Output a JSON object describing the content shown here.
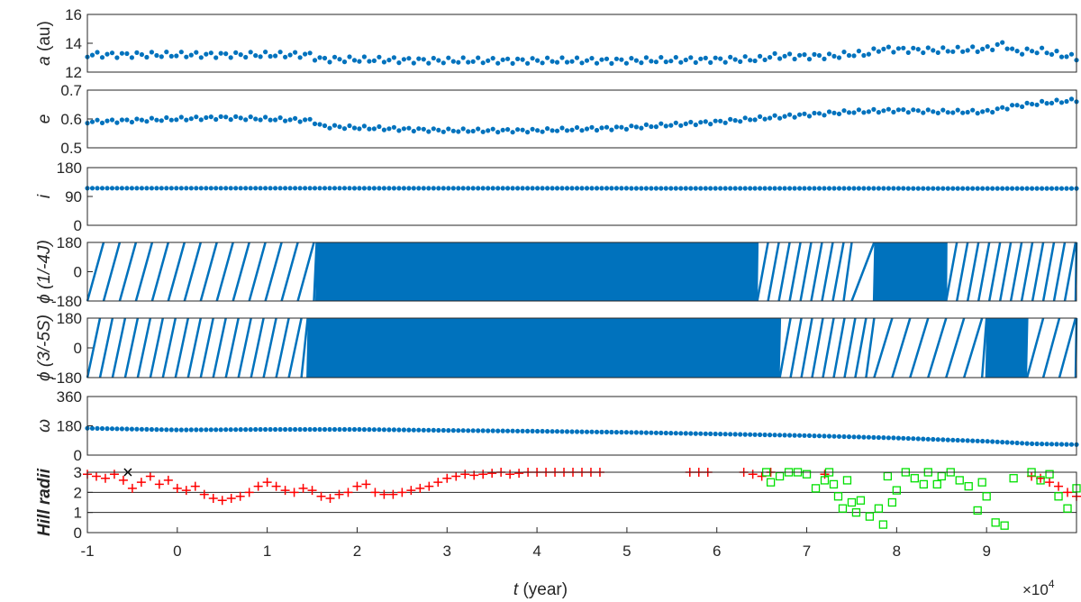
{
  "chart_data": {
    "type": "scatter",
    "title": "",
    "shared_x": {
      "label_var": "t",
      "label_unit": " (year)",
      "lim": [
        -1,
        10
      ],
      "ticks": [
        "-1",
        "0",
        "1",
        "2",
        "3",
        "4",
        "5",
        "6",
        "7",
        "8",
        "9"
      ],
      "multiplier": "×10",
      "multiplier_exp": "4"
    },
    "marker_color": "#0072BD",
    "panels": [
      {
        "id": "a",
        "ylabel_var": "a",
        "ylabel_unit": " (au)",
        "ylim": [
          12,
          16
        ],
        "yticks": [
          "12",
          "14",
          "16"
        ],
        "series": {
          "x": [
            -1,
            1.5,
            1.55,
            3,
            5,
            6.5,
            6.6,
            7.3,
            7.4,
            7.7,
            7.8,
            8.5,
            9,
            9.2,
            9.3,
            9.6,
            9.9,
            10
          ],
          "y": [
            13.2,
            13.2,
            12.9,
            12.8,
            12.8,
            12.9,
            13.1,
            13.1,
            13.2,
            13.3,
            13.6,
            13.5,
            13.6,
            14.0,
            13.4,
            13.5,
            13.1,
            13.0
          ]
        }
      },
      {
        "id": "e",
        "ylabel_var": "e",
        "ylabel_unit": "",
        "ylim": [
          0.5,
          0.7
        ],
        "yticks": [
          "0.5",
          "0.6",
          "0.7"
        ],
        "series": {
          "x": [
            -1,
            0,
            0.5,
            1,
            1.5,
            1.6,
            2,
            3,
            4,
            5,
            6,
            6.6,
            7,
            7.5,
            8,
            8.5,
            9,
            9.3,
            9.6,
            10
          ],
          "y": [
            0.59,
            0.6,
            0.605,
            0.6,
            0.595,
            0.575,
            0.57,
            0.56,
            0.56,
            0.57,
            0.59,
            0.605,
            0.615,
            0.625,
            0.63,
            0.625,
            0.625,
            0.645,
            0.655,
            0.665
          ]
        }
      },
      {
        "id": "i",
        "ylabel_var": "i",
        "ylabel_unit": "",
        "ylim": [
          0,
          180
        ],
        "yticks": [
          "0",
          "90",
          "180"
        ],
        "series": {
          "x": [
            -1,
            10
          ],
          "y": [
            116,
            115
          ]
        }
      },
      {
        "id": "phi1",
        "ylabel_var": "ϕ",
        "ylabel_unit": " (1/-4J)",
        "ylim": [
          -180,
          180
        ],
        "yticks": [
          "-180",
          "0",
          "180"
        ],
        "series": {
          "x": [
            -1,
            10
          ],
          "y": [
            -180,
            180
          ]
        },
        "band_regimes": [
          {
            "from": -1,
            "to": 1.55,
            "period": 0.18
          },
          {
            "from": 1.55,
            "to": 6.45,
            "period": 0.015
          },
          {
            "from": 6.45,
            "to": 7.5,
            "period": 0.12
          },
          {
            "from": 7.5,
            "to": 7.75,
            "period": 0.25
          },
          {
            "from": 7.75,
            "to": 8.55,
            "period": 0.015
          },
          {
            "from": 8.55,
            "to": 10,
            "period": 0.12
          }
        ]
      },
      {
        "id": "phi2",
        "ylabel_var": "ϕ",
        "ylabel_unit": " (3/-5S)",
        "ylim": [
          -180,
          180
        ],
        "yticks": [
          "-180",
          "0",
          "180"
        ],
        "series": {
          "x": [
            -1,
            10
          ],
          "y": [
            -180,
            180
          ]
        },
        "band_regimes": [
          {
            "from": -1,
            "to": 1.45,
            "period": 0.14
          },
          {
            "from": 1.45,
            "to": 6.7,
            "period": 0.015
          },
          {
            "from": 6.7,
            "to": 7.75,
            "period": 0.12
          },
          {
            "from": 7.75,
            "to": 9.0,
            "period": 0.2
          },
          {
            "from": 9.0,
            "to": 9.45,
            "period": 0.015
          },
          {
            "from": 9.45,
            "to": 10,
            "period": 0.18
          }
        ]
      },
      {
        "id": "omega",
        "ylabel_var": "ω",
        "ylabel_unit": "",
        "ylim": [
          0,
          360
        ],
        "yticks": [
          "0",
          "180",
          "360"
        ],
        "series": {
          "x": [
            -1,
            0,
            1,
            2,
            3,
            4,
            5,
            6,
            7,
            8,
            9,
            9.5,
            10
          ],
          "y": [
            165,
            155,
            158,
            158,
            152,
            147,
            140,
            130,
            120,
            105,
            85,
            70,
            65
          ]
        }
      },
      {
        "id": "hill",
        "ylabel_var": "Hill radii",
        "ylabel_unit": "",
        "ylim": [
          0,
          3
        ],
        "yticks": [
          "0",
          "1",
          "2",
          "3"
        ],
        "hlines": [
          1,
          2,
          3
        ],
        "red_plus_color": "#FF0000",
        "green_square_color": "#00E000",
        "red_plus": {
          "x": [
            -1,
            -0.9,
            -0.8,
            -0.7,
            -0.6,
            -0.5,
            -0.4,
            -0.3,
            -0.2,
            -0.1,
            0,
            0.1,
            0.2,
            0.3,
            0.4,
            0.5,
            0.6,
            0.7,
            0.8,
            0.9,
            1.0,
            1.1,
            1.2,
            1.3,
            1.4,
            1.5,
            1.6,
            1.7,
            1.8,
            1.9,
            2.0,
            2.1,
            2.2,
            2.3,
            2.4,
            2.5,
            2.6,
            2.7,
            2.8,
            2.9,
            3.0,
            3.1,
            3.2,
            3.3,
            3.4,
            3.5,
            3.6,
            3.7,
            3.8,
            3.9,
            4.0,
            4.1,
            4.2,
            4.3,
            4.4,
            4.5,
            4.6,
            4.7,
            5.7,
            5.8,
            5.9,
            6.3,
            6.4,
            6.5,
            6.6,
            7.2,
            9.5,
            9.6,
            9.7,
            9.8,
            9.9,
            10
          ],
          "y": [
            2.9,
            2.8,
            2.7,
            2.9,
            2.6,
            2.2,
            2.5,
            2.8,
            2.4,
            2.6,
            2.2,
            2.1,
            2.3,
            1.9,
            1.7,
            1.6,
            1.7,
            1.8,
            2.0,
            2.3,
            2.5,
            2.3,
            2.1,
            2.0,
            2.2,
            2.1,
            1.8,
            1.7,
            1.9,
            2.0,
            2.3,
            2.4,
            2.0,
            1.9,
            1.9,
            2.0,
            2.1,
            2.2,
            2.3,
            2.5,
            2.7,
            2.8,
            2.9,
            2.85,
            2.9,
            2.95,
            3.0,
            2.9,
            2.95,
            3.0,
            3.0,
            3.0,
            3.0,
            3.0,
            3.0,
            3.0,
            3.0,
            3.0,
            3.0,
            3.0,
            3.0,
            3.0,
            2.9,
            2.8,
            3.0,
            2.9,
            2.8,
            2.7,
            2.5,
            2.3,
            2.0,
            1.8
          ]
        },
        "black_x": {
          "x": [
            -0.55
          ],
          "y": [
            3.0
          ]
        },
        "green_square": {
          "x": [
            6.55,
            6.6,
            6.7,
            6.8,
            6.9,
            7.0,
            7.1,
            7.2,
            7.25,
            7.3,
            7.35,
            7.4,
            7.45,
            7.5,
            7.55,
            7.6,
            7.7,
            7.8,
            7.85,
            7.9,
            7.95,
            8.0,
            8.1,
            8.2,
            8.3,
            8.35,
            8.45,
            8.5,
            8.6,
            8.7,
            8.8,
            8.9,
            8.95,
            9.0,
            9.1,
            9.2,
            9.3,
            9.5,
            9.6,
            9.7,
            9.8,
            9.9,
            10
          ],
          "y": [
            3.0,
            2.5,
            2.8,
            3.0,
            3.0,
            2.9,
            2.2,
            2.6,
            3.0,
            2.4,
            1.8,
            1.2,
            2.6,
            1.5,
            1.0,
            1.6,
            0.8,
            1.2,
            0.4,
            2.8,
            1.5,
            2.1,
            3.0,
            2.7,
            2.4,
            3.0,
            2.4,
            2.8,
            3.0,
            2.6,
            2.3,
            1.1,
            2.5,
            1.8,
            0.5,
            0.35,
            2.7,
            3.0,
            2.6,
            2.9,
            1.8,
            1.2,
            2.2
          ]
        }
      }
    ]
  }
}
